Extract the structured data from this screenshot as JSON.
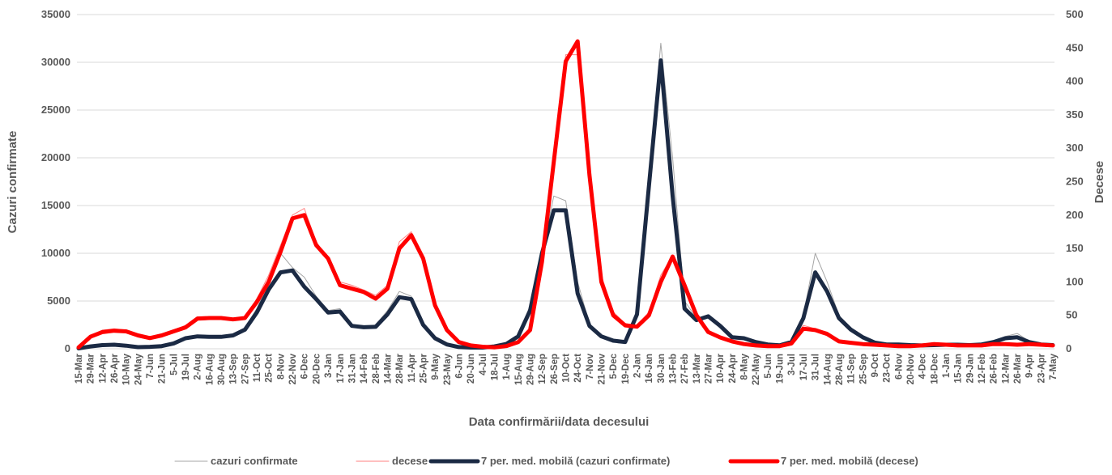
{
  "chart_data": {
    "type": "line",
    "title": "",
    "xlabel": "Data confirmării/data decesului",
    "ylabel": "Cazuri confirmate",
    "y2label": "Decese",
    "ylim": [
      0,
      35000
    ],
    "y2lim": [
      0,
      500
    ],
    "yticks": [
      "0",
      "5000",
      "10000",
      "15000",
      "20000",
      "25000",
      "30000",
      "35000"
    ],
    "y2ticks": [
      "0",
      "50",
      "100",
      "150",
      "200",
      "250",
      "300",
      "350",
      "400",
      "450",
      "500"
    ],
    "x": [
      "15-Mar",
      "29-Mar",
      "12-Apr",
      "26-Apr",
      "10-May",
      "24-May",
      "7-Jun",
      "21-Jun",
      "5-Jul",
      "19-Jul",
      "2-Aug",
      "16-Aug",
      "30-Aug",
      "13-Sep",
      "27-Sep",
      "11-Oct",
      "25-Oct",
      "8-Nov",
      "22-Nov",
      "6-Dec",
      "20-Dec",
      "3-Jan",
      "17-Jan",
      "31-Jan",
      "14-Feb",
      "28-Feb",
      "14-Mar",
      "28-Mar",
      "11-Apr",
      "25-Apr",
      "9-May",
      "23-May",
      "6-Jun",
      "20-Jun",
      "4-Jul",
      "18-Jul",
      "1-Aug",
      "15-Aug",
      "29-Aug",
      "12-Sep",
      "26-Sep",
      "10-Oct",
      "24-Oct",
      "7-Nov",
      "21-Nov",
      "5-Dec",
      "19-Dec",
      "2-Jan",
      "16-Jan",
      "30-Jan",
      "13-Feb",
      "27-Feb",
      "13-Mar",
      "27-Mar",
      "10-Apr",
      "24-Apr",
      "8-May",
      "22-May",
      "5-Jun",
      "19-Jun",
      "3-Jul",
      "17-Jul",
      "31-Jul",
      "14-Aug",
      "28-Aug",
      "11-Sep",
      "25-Sep",
      "9-Oct",
      "23-Oct",
      "6-Nov",
      "20-Nov",
      "4-Dec",
      "18-Dec",
      "1-Jan",
      "15-Jan",
      "29-Jan",
      "12-Feb",
      "26-Feb",
      "12-Mar",
      "26-Mar",
      "9-Apr",
      "23-Apr",
      "7-May"
    ],
    "series": [
      {
        "name": "cazuri confirmate",
        "axis": "left",
        "color": "#a6a6a6",
        "values": [
          50,
          300,
          400,
          450,
          350,
          200,
          220,
          300,
          600,
          1200,
          1400,
          1300,
          1300,
          1500,
          2200,
          4200,
          7000,
          10000,
          8500,
          7500,
          5500,
          4000,
          4200,
          2500,
          2300,
          2500,
          4000,
          6000,
          5500,
          2500,
          1200,
          500,
          200,
          150,
          150,
          300,
          600,
          1500,
          4500,
          10000,
          16000,
          15500,
          7000,
          2600,
          1400,
          900,
          700,
          4000,
          18000,
          32000,
          20000,
          5000,
          3200,
          3500,
          2500,
          1300,
          1200,
          800,
          500,
          400,
          800,
          3500,
          10000,
          7000,
          3500,
          2200,
          1400,
          700,
          500,
          500,
          400,
          400,
          400,
          450,
          450,
          400,
          500,
          800,
          1300,
          1600,
          800,
          500,
          400
        ]
      },
      {
        "name": "decese",
        "axis": "right",
        "color": "#ff8080",
        "values": [
          2,
          20,
          28,
          30,
          28,
          22,
          18,
          22,
          28,
          35,
          48,
          48,
          48,
          46,
          48,
          75,
          110,
          155,
          200,
          210,
          160,
          135,
          100,
          95,
          88,
          80,
          95,
          160,
          175,
          140,
          70,
          30,
          12,
          6,
          4,
          3,
          5,
          12,
          30,
          140,
          290,
          440,
          440,
          270,
          110,
          55,
          38,
          35,
          55,
          110,
          140,
          100,
          55,
          28,
          18,
          12,
          8,
          6,
          5,
          5,
          10,
          35,
          30,
          25,
          12,
          10,
          8,
          6,
          5,
          5,
          4,
          6,
          8,
          7,
          6,
          5,
          6,
          8,
          8,
          7,
          8,
          7,
          5
        ]
      },
      {
        "name": "7 per. med. mobilă (cazuri confirmate)",
        "axis": "left",
        "color": "#1b2a44",
        "values": [
          40,
          250,
          380,
          420,
          320,
          170,
          200,
          280,
          560,
          1100,
          1300,
          1250,
          1250,
          1400,
          2000,
          3800,
          6200,
          8000,
          8200,
          6500,
          5200,
          3800,
          3900,
          2400,
          2250,
          2300,
          3600,
          5400,
          5200,
          2500,
          1100,
          450,
          180,
          130,
          130,
          250,
          500,
          1300,
          4000,
          10000,
          14500,
          14500,
          5800,
          2400,
          1300,
          850,
          700,
          3600,
          17000,
          30200,
          16000,
          4200,
          3000,
          3400,
          2400,
          1200,
          1100,
          700,
          450,
          360,
          700,
          3200,
          8000,
          6000,
          3200,
          2000,
          1200,
          650,
          450,
          450,
          380,
          350,
          380,
          420,
          420,
          380,
          450,
          700,
          1100,
          1200,
          700,
          450,
          380
        ]
      },
      {
        "name": "7 per. med. mobilă (decese)",
        "axis": "right",
        "color": "#ff0000",
        "values": [
          2,
          18,
          25,
          27,
          26,
          20,
          16,
          20,
          26,
          32,
          45,
          46,
          46,
          44,
          46,
          70,
          100,
          145,
          195,
          200,
          155,
          135,
          95,
          90,
          85,
          75,
          90,
          150,
          170,
          135,
          65,
          28,
          10,
          5,
          3,
          2,
          4,
          10,
          28,
          130,
          280,
          430,
          460,
          260,
          100,
          50,
          35,
          33,
          50,
          100,
          138,
          95,
          50,
          25,
          17,
          11,
          7,
          5,
          4,
          4,
          8,
          30,
          28,
          22,
          11,
          9,
          7,
          6,
          5,
          4,
          4,
          5,
          7,
          6,
          5,
          5,
          5,
          7,
          7,
          6,
          7,
          6,
          5
        ]
      }
    ],
    "legend_position": "bottom",
    "grid": "horizontal"
  }
}
